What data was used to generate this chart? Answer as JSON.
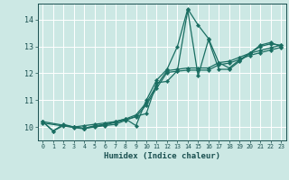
{
  "xlabel": "Humidex (Indice chaleur)",
  "bg_color": "#cce8e4",
  "grid_color": "#ffffff",
  "line_color": "#1a6e62",
  "marker_color": "#1a6e62",
  "xlim": [
    -0.5,
    23.5
  ],
  "ylim": [
    9.5,
    14.6
  ],
  "yticks": [
    10,
    11,
    12,
    13,
    14
  ],
  "xticks": [
    0,
    1,
    2,
    3,
    4,
    5,
    6,
    7,
    8,
    9,
    10,
    11,
    12,
    13,
    14,
    15,
    16,
    17,
    18,
    19,
    20,
    21,
    22,
    23
  ],
  "lines": [
    {
      "x": [
        0,
        1,
        2,
        3,
        4,
        5,
        6,
        7,
        8,
        9,
        10,
        11,
        12,
        13,
        14,
        15,
        16,
        17,
        18,
        19,
        20,
        21,
        22,
        23
      ],
      "y": [
        10.2,
        9.85,
        10.1,
        10.0,
        10.05,
        10.1,
        10.15,
        10.2,
        10.3,
        10.05,
        11.0,
        11.75,
        12.15,
        13.0,
        14.4,
        13.8,
        13.3,
        12.4,
        12.2,
        12.5,
        12.75,
        13.0,
        13.1,
        13.05
      ]
    },
    {
      "x": [
        0,
        1,
        2,
        3,
        4,
        5,
        6,
        7,
        8,
        9,
        10,
        11,
        12,
        13,
        14,
        15,
        16,
        17,
        18,
        19,
        20,
        21,
        22,
        23
      ],
      "y": [
        10.2,
        9.85,
        10.05,
        10.0,
        9.95,
        10.0,
        10.05,
        10.1,
        10.25,
        10.4,
        10.5,
        11.65,
        11.7,
        12.1,
        14.35,
        11.9,
        13.25,
        12.15,
        12.15,
        12.45,
        12.75,
        13.05,
        13.15,
        13.0
      ]
    },
    {
      "x": [
        0,
        3,
        4,
        5,
        6,
        7,
        8,
        9,
        10,
        11,
        12,
        13,
        14,
        15,
        16,
        17,
        18,
        19,
        20,
        21,
        22,
        23
      ],
      "y": [
        10.2,
        10.0,
        9.95,
        10.05,
        10.1,
        10.2,
        10.3,
        10.45,
        10.9,
        11.55,
        12.1,
        12.15,
        12.2,
        12.2,
        12.2,
        12.4,
        12.45,
        12.6,
        12.75,
        12.85,
        12.95,
        13.05
      ]
    },
    {
      "x": [
        0,
        3,
        4,
        5,
        6,
        7,
        8,
        9,
        10,
        11,
        12,
        13,
        14,
        15,
        16,
        17,
        18,
        19,
        20,
        21,
        22,
        23
      ],
      "y": [
        10.15,
        9.98,
        9.93,
        10.03,
        10.07,
        10.17,
        10.27,
        10.38,
        10.82,
        11.45,
        12.03,
        12.08,
        12.12,
        12.12,
        12.12,
        12.32,
        12.38,
        12.52,
        12.67,
        12.77,
        12.87,
        12.97
      ]
    }
  ]
}
